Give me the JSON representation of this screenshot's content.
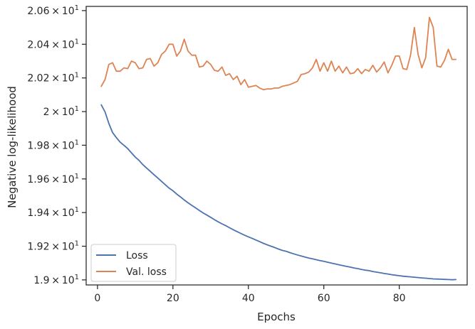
{
  "chart_data": {
    "type": "line",
    "xlabel": "Epochs",
    "ylabel": "Negative log-likelihood",
    "xlim": [
      -3,
      98
    ],
    "ylim": [
      18.97,
      20.625
    ],
    "x_ticks": [
      0,
      20,
      40,
      60,
      80
    ],
    "y_ticks": [
      {
        "value": 19.0,
        "mantissa": "1.9",
        "base": "10",
        "exp": "1"
      },
      {
        "value": 19.2,
        "mantissa": "1.92",
        "base": "10",
        "exp": "1"
      },
      {
        "value": 19.4,
        "mantissa": "1.94",
        "base": "10",
        "exp": "1"
      },
      {
        "value": 19.6,
        "mantissa": "1.96",
        "base": "10",
        "exp": "1"
      },
      {
        "value": 19.8,
        "mantissa": "1.98",
        "base": "10",
        "exp": "1"
      },
      {
        "value": 20.0,
        "mantissa": "2",
        "base": "10",
        "exp": "1"
      },
      {
        "value": 20.2,
        "mantissa": "2.02",
        "base": "10",
        "exp": "1"
      },
      {
        "value": 20.4,
        "mantissa": "2.04",
        "base": "10",
        "exp": "1"
      },
      {
        "value": 20.6,
        "mantissa": "2.06",
        "base": "10",
        "exp": "1"
      }
    ],
    "grid": false,
    "legend_position": "bottom-left",
    "series": [
      {
        "name": "Loss",
        "color": "#4c72b0",
        "x": [
          1,
          2,
          3,
          4,
          5,
          6,
          7,
          8,
          9,
          10,
          11,
          12,
          13,
          14,
          15,
          16,
          17,
          18,
          19,
          20,
          21,
          22,
          23,
          24,
          25,
          26,
          27,
          28,
          29,
          30,
          31,
          32,
          33,
          34,
          35,
          36,
          37,
          38,
          39,
          40,
          41,
          42,
          43,
          44,
          45,
          46,
          47,
          48,
          49,
          50,
          51,
          52,
          53,
          54,
          55,
          56,
          57,
          58,
          59,
          60,
          61,
          62,
          63,
          64,
          65,
          66,
          67,
          68,
          69,
          70,
          71,
          72,
          73,
          74,
          75,
          76,
          77,
          78,
          79,
          80,
          81,
          82,
          83,
          84,
          85,
          86,
          87,
          88,
          89,
          90,
          91,
          92,
          93,
          94,
          95
        ],
        "y": [
          20.04,
          19.998,
          19.93,
          19.875,
          19.845,
          19.818,
          19.8,
          19.78,
          19.755,
          19.73,
          19.71,
          19.685,
          19.665,
          19.645,
          19.625,
          19.605,
          19.585,
          19.565,
          19.545,
          19.53,
          19.51,
          19.493,
          19.475,
          19.458,
          19.443,
          19.428,
          19.413,
          19.398,
          19.385,
          19.372,
          19.358,
          19.345,
          19.333,
          19.322,
          19.31,
          19.298,
          19.287,
          19.276,
          19.265,
          19.256,
          19.247,
          19.237,
          19.227,
          19.217,
          19.208,
          19.2,
          19.192,
          19.183,
          19.175,
          19.17,
          19.162,
          19.155,
          19.148,
          19.142,
          19.136,
          19.13,
          19.125,
          19.12,
          19.115,
          19.11,
          19.105,
          19.1,
          19.095,
          19.09,
          19.085,
          19.08,
          19.076,
          19.071,
          19.067,
          19.062,
          19.058,
          19.055,
          19.05,
          19.046,
          19.042,
          19.038,
          19.035,
          19.031,
          19.028,
          19.025,
          19.022,
          19.02,
          19.018,
          19.016,
          19.014,
          19.012,
          19.01,
          19.008,
          19.006,
          19.005,
          19.004,
          19.003,
          19.002,
          19.001,
          19.002
        ]
      },
      {
        "name": "Val. loss",
        "color": "#dd8452",
        "x": [
          1,
          2,
          3,
          4,
          5,
          6,
          7,
          8,
          9,
          10,
          11,
          12,
          13,
          14,
          15,
          16,
          17,
          18,
          19,
          20,
          21,
          22,
          23,
          24,
          25,
          26,
          27,
          28,
          29,
          30,
          31,
          32,
          33,
          34,
          35,
          36,
          37,
          38,
          39,
          40,
          41,
          42,
          43,
          44,
          45,
          46,
          47,
          48,
          49,
          50,
          51,
          52,
          53,
          54,
          55,
          56,
          57,
          58,
          59,
          60,
          61,
          62,
          63,
          64,
          65,
          66,
          67,
          68,
          69,
          70,
          71,
          72,
          73,
          74,
          75,
          76,
          77,
          78,
          79,
          80,
          81,
          82,
          83,
          84,
          85,
          86,
          87,
          88,
          89,
          90,
          91,
          92,
          93,
          94,
          95
        ],
        "y": [
          20.15,
          20.19,
          20.28,
          20.29,
          20.24,
          20.24,
          20.26,
          20.255,
          20.3,
          20.29,
          20.255,
          20.26,
          20.31,
          20.315,
          20.27,
          20.29,
          20.34,
          20.36,
          20.4,
          20.4,
          20.33,
          20.36,
          20.43,
          20.36,
          20.335,
          20.335,
          20.265,
          20.27,
          20.3,
          20.28,
          20.245,
          20.24,
          20.265,
          20.215,
          20.225,
          20.19,
          20.21,
          20.16,
          20.19,
          20.145,
          20.15,
          20.155,
          20.14,
          20.13,
          20.135,
          20.135,
          20.14,
          20.14,
          20.15,
          20.155,
          20.16,
          20.17,
          20.18,
          20.22,
          20.225,
          20.235,
          20.26,
          20.31,
          20.24,
          20.29,
          20.24,
          20.3,
          20.24,
          20.27,
          20.23,
          20.265,
          20.225,
          20.23,
          20.255,
          20.225,
          20.25,
          20.24,
          20.275,
          20.235,
          20.26,
          20.295,
          20.23,
          20.275,
          20.33,
          20.33,
          20.255,
          20.25,
          20.335,
          20.5,
          20.34,
          20.26,
          20.32,
          20.56,
          20.5,
          20.27,
          20.265,
          20.305,
          20.37,
          20.31,
          20.31
        ]
      }
    ]
  }
}
